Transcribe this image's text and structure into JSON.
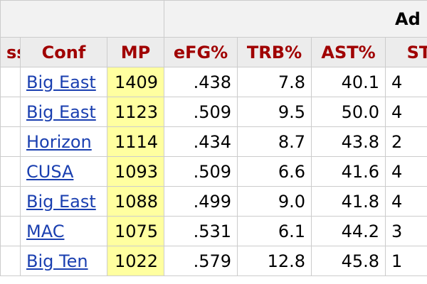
{
  "table": {
    "group_header": "Ad",
    "columns": [
      "ss",
      "Conf",
      "MP",
      "eFG%",
      "TRB%",
      "AST%",
      "STL"
    ],
    "rows": [
      [
        "Big East",
        "1409",
        ".438",
        "7.8",
        "40.1",
        "4"
      ],
      [
        "Big East",
        "1123",
        ".509",
        "9.5",
        "50.0",
        "4"
      ],
      [
        "Horizon",
        "1114",
        ".434",
        "8.7",
        "43.8",
        "2"
      ],
      [
        "CUSA",
        "1093",
        ".509",
        "6.6",
        "41.6",
        "4"
      ],
      [
        "Big East",
        "1088",
        ".499",
        "9.0",
        "41.8",
        "4"
      ],
      [
        "MAC",
        "1075",
        ".531",
        "6.1",
        "44.2",
        "3"
      ],
      [
        "Big Ten",
        "1022",
        ".579",
        "12.8",
        "45.8",
        "1"
      ]
    ]
  }
}
